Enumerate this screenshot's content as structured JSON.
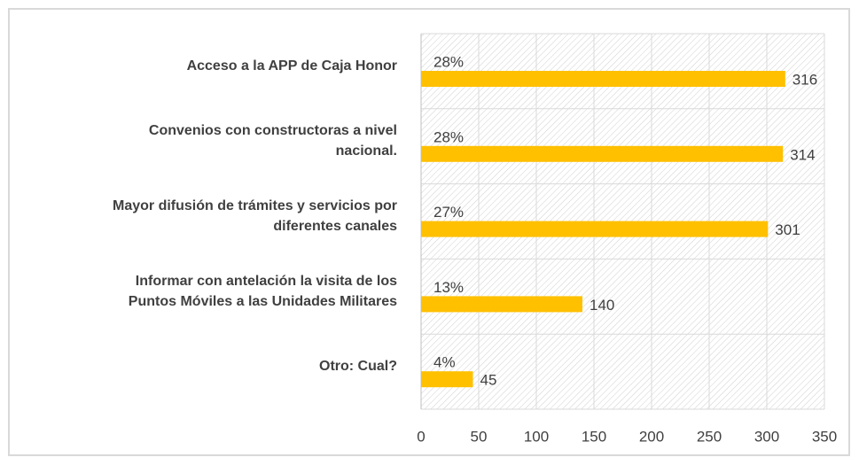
{
  "chart_data": {
    "type": "barh",
    "categories": [
      "Acceso a la APP de Caja Honor",
      "Convenios con constructoras a nivel\nnacional.",
      "Mayor difusión de trámites y servicios por\ndiferentes canales",
      "Informar con antelación la visita de los\nPuntos Móviles a las Unidades Militares",
      "Otro: Cual?"
    ],
    "values": [
      316,
      314,
      301,
      140,
      45
    ],
    "percent_labels": [
      "28%",
      "28%",
      "27%",
      "13%",
      "4%"
    ],
    "color": "#ffc000",
    "xlim": [
      0,
      350
    ],
    "xticks": [
      0,
      50,
      100,
      150,
      200,
      250,
      300,
      350
    ],
    "grid": true
  }
}
